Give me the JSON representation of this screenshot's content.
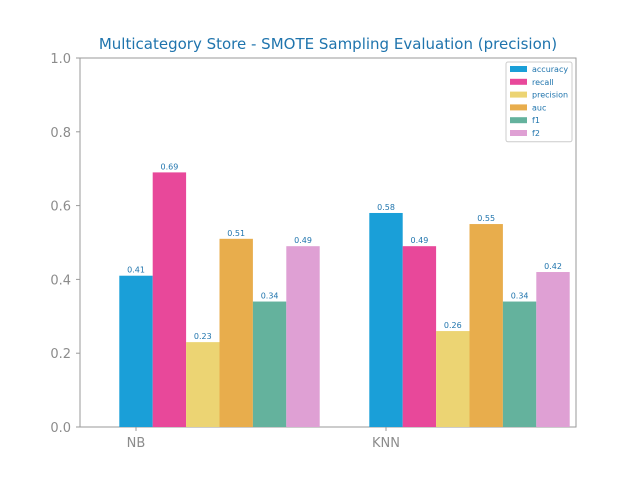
{
  "chart_data": {
    "type": "bar",
    "title": "Multicategory Store - SMOTE Sampling Evaluation (precision)",
    "xlabel": "",
    "ylabel": "",
    "ylim": [
      0,
      1.0
    ],
    "yticks": [
      "0.0",
      "0.2",
      "0.4",
      "0.6",
      "0.8",
      "1.0"
    ],
    "categories": [
      "NB",
      "KNN"
    ],
    "legend_position": "top-right",
    "grid": false,
    "series": [
      {
        "name": "accuracy",
        "color": "#1a9fd8",
        "values": [
          0.41,
          0.58
        ],
        "labels": [
          "0.41",
          "0.58"
        ]
      },
      {
        "name": "recall",
        "color": "#e8489a",
        "values": [
          0.69,
          0.49
        ],
        "labels": [
          "0.69",
          "0.49"
        ]
      },
      {
        "name": "precision",
        "color": "#ecd473",
        "values": [
          0.23,
          0.26
        ],
        "labels": [
          "0.23",
          "0.26"
        ]
      },
      {
        "name": "auc",
        "color": "#e8ad4c",
        "values": [
          0.51,
          0.55
        ],
        "labels": [
          "0.51",
          "0.55"
        ]
      },
      {
        "name": "f1",
        "color": "#64b29d",
        "values": [
          0.34,
          0.34
        ],
        "labels": [
          "0.34",
          "0.34"
        ]
      },
      {
        "name": "f2",
        "color": "#dfa0d4",
        "values": [
          0.49,
          0.42
        ],
        "labels": [
          "0.49",
          "0.42"
        ]
      }
    ]
  },
  "colors": {
    "title": "#1f74ad",
    "axis_text": "#8c8c8c",
    "data_label": "#1f74ad",
    "spine": "#9a9a9a"
  }
}
